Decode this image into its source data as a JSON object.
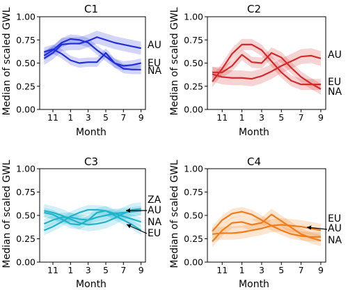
{
  "figure": {
    "ylabel": "Median of scaled GWL",
    "xlabel": "Month"
  },
  "chart_data": [
    {
      "type": "line",
      "title": "C1",
      "color": "#1f2ed8",
      "xlabel": "Month",
      "ylabel": "Median of scaled GWL",
      "xticks": [
        11,
        1,
        3,
        5,
        7,
        9
      ],
      "yticks": [
        0.0,
        0.25,
        0.5,
        0.75,
        1.0
      ],
      "ylim": [
        0,
        1
      ],
      "month_axis": [
        10,
        11,
        12,
        1,
        2,
        3,
        4,
        5,
        6,
        7,
        8,
        9
      ],
      "series": [
        {
          "name": "AU",
          "values": [
            0.55,
            0.61,
            0.7,
            0.71,
            0.71,
            0.74,
            0.78,
            0.75,
            0.72,
            0.7,
            0.68,
            0.66
          ],
          "band": 0.07
        },
        {
          "name": "EU",
          "values": [
            0.58,
            0.64,
            0.72,
            0.76,
            0.75,
            0.72,
            0.64,
            0.57,
            0.5,
            0.47,
            0.48,
            0.5
          ],
          "band": 0.05
        },
        {
          "name": "NA",
          "values": [
            0.62,
            0.65,
            0.6,
            0.53,
            0.5,
            0.51,
            0.51,
            0.61,
            0.5,
            0.44,
            0.43,
            0.43
          ],
          "band": 0.05
        }
      ],
      "annotations": []
    },
    {
      "type": "line",
      "title": "C2",
      "color": "#d42a2a",
      "xlabel": "Month",
      "ylabel": "Median of scaled GWL",
      "xticks": [
        11,
        1,
        3,
        5,
        7,
        9
      ],
      "yticks": [
        0.0,
        0.25,
        0.5,
        0.75,
        1.0
      ],
      "ylim": [
        0,
        1
      ],
      "month_axis": [
        10,
        11,
        12,
        1,
        2,
        3,
        4,
        5,
        6,
        7,
        8,
        9
      ],
      "series": [
        {
          "name": "AU",
          "values": [
            0.38,
            0.35,
            0.34,
            0.34,
            0.33,
            0.36,
            0.41,
            0.47,
            0.52,
            0.57,
            0.58,
            0.55
          ],
          "band": 0.08
        },
        {
          "name": "EU",
          "values": [
            0.3,
            0.44,
            0.6,
            0.7,
            0.7,
            0.64,
            0.52,
            0.4,
            0.31,
            0.27,
            0.27,
            0.27
          ],
          "band": 0.06
        },
        {
          "name": "NA",
          "values": [
            0.4,
            0.4,
            0.47,
            0.59,
            0.51,
            0.5,
            0.61,
            0.56,
            0.45,
            0.35,
            0.28,
            0.22
          ],
          "band": 0.06
        }
      ],
      "annotations": []
    },
    {
      "type": "line",
      "title": "C3",
      "color": "#1fb4cc",
      "xlabel": "Month",
      "ylabel": "Median of scaled GWL",
      "xticks": [
        11,
        1,
        3,
        5,
        7,
        9
      ],
      "yticks": [
        0.0,
        0.25,
        0.5,
        0.75,
        1.0
      ],
      "ylim": [
        0,
        1
      ],
      "month_axis": [
        10,
        11,
        12,
        1,
        2,
        3,
        4,
        5,
        6,
        7,
        8,
        9
      ],
      "series": [
        {
          "name": "ZA",
          "values": [
            0.55,
            0.53,
            0.5,
            0.46,
            0.42,
            0.4,
            0.41,
            0.43,
            0.47,
            0.52,
            0.56,
            0.57
          ],
          "band": 0.07
        },
        {
          "name": "AU",
          "values": [
            0.41,
            0.45,
            0.48,
            0.48,
            0.46,
            0.45,
            0.48,
            0.5,
            0.52,
            0.53,
            0.54,
            0.55
          ],
          "band": 0.05
        },
        {
          "name": "NA",
          "values": [
            0.34,
            0.38,
            0.43,
            0.49,
            0.53,
            0.56,
            0.56,
            0.55,
            0.52,
            0.49,
            0.46,
            0.43
          ],
          "band": 0.05
        },
        {
          "name": "EU",
          "values": [
            0.53,
            0.51,
            0.46,
            0.41,
            0.4,
            0.45,
            0.53,
            0.55,
            0.5,
            0.45,
            0.4,
            0.34
          ],
          "band": 0.05
        }
      ],
      "annotations": [
        "AU",
        "EU"
      ]
    },
    {
      "type": "line",
      "title": "C4",
      "color": "#f07d1a",
      "xlabel": "Month",
      "ylabel": "Median of scaled GWL",
      "xticks": [
        11,
        1,
        3,
        5,
        7,
        9
      ],
      "yticks": [
        0.0,
        0.25,
        0.5,
        0.75,
        1.0
      ],
      "ylim": [
        0,
        1
      ],
      "month_axis": [
        10,
        11,
        12,
        1,
        2,
        3,
        4,
        5,
        6,
        7,
        8,
        9
      ],
      "series": [
        {
          "name": "EU",
          "values": [
            0.33,
            0.45,
            0.52,
            0.54,
            0.51,
            0.45,
            0.39,
            0.34,
            0.3,
            0.28,
            0.27,
            0.27
          ],
          "band": 0.05
        },
        {
          "name": "AU",
          "values": [
            0.3,
            0.31,
            0.31,
            0.32,
            0.34,
            0.36,
            0.39,
            0.4,
            0.39,
            0.38,
            0.36,
            0.34
          ],
          "band": 0.07
        },
        {
          "name": "NA",
          "values": [
            0.22,
            0.34,
            0.42,
            0.43,
            0.4,
            0.42,
            0.51,
            0.44,
            0.37,
            0.3,
            0.26,
            0.23
          ],
          "band": 0.06
        }
      ],
      "annotations": [
        "AU"
      ]
    }
  ]
}
